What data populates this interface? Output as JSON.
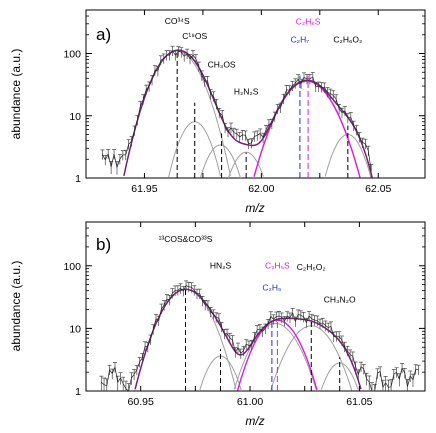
{
  "chart_data": [
    {
      "type": "line",
      "panel_label": "a)",
      "xlabel": "m/z",
      "ylabel": "abundance (a.u.)",
      "xlim": [
        61.925,
        62.07
      ],
      "ylim": [
        1,
        500
      ],
      "yscale": "log",
      "xticks": [
        {
          "value": 61.95,
          "label": "61.95"
        },
        {
          "value": 61.975,
          "label": ""
        },
        {
          "value": 62.0,
          "label": "62.00"
        },
        {
          "value": 62.025,
          "label": ""
        },
        {
          "value": 62.05,
          "label": "62.05"
        }
      ],
      "yticks": [
        {
          "value": 1,
          "label": "1"
        },
        {
          "value": 10,
          "label": "10"
        },
        {
          "value": 100,
          "label": "100"
        }
      ],
      "annotations": [
        {
          "x": 61.964,
          "text": "CO³⁴S",
          "color": "#000000",
          "line_top": 90,
          "text_y": 300
        },
        {
          "x": 61.9715,
          "text": "C¹⁸OS",
          "color": "#000000",
          "line_top": 14,
          "text_y": 170
        },
        {
          "x": 61.983,
          "text": "CH₃OS",
          "color": "#000000",
          "line_top": 4.5,
          "text_y": 60
        },
        {
          "x": 61.9935,
          "text": "H₂N₂S",
          "color": "#000000",
          "line_top": 2.2,
          "text_y": 22
        },
        {
          "x": 62.0165,
          "text": "C₂H₇",
          "color": "#1f2fd0",
          "line_top": 38,
          "text_y": 150,
          "dash": "6,3"
        },
        {
          "x": 62.02,
          "text": "C₂H₆S",
          "color": "#e01be0",
          "line_top": 38,
          "text_y": 290,
          "dash": "6,3"
        },
        {
          "x": 62.037,
          "text": "C₂H₆O₂",
          "color": "#000000",
          "line_top": 6,
          "text_y": 150
        }
      ],
      "components": [
        {
          "center": 61.964,
          "height": 110,
          "sigma": 0.0075
        },
        {
          "center": 61.9715,
          "height": 8,
          "sigma": 0.0055
        },
        {
          "center": 61.9825,
          "height": 3.4,
          "sigma": 0.0055
        },
        {
          "center": 61.9935,
          "height": 2.6,
          "sigma": 0.0055
        },
        {
          "center": 62.0195,
          "height": 37,
          "sigma": 0.0085
        },
        {
          "center": 62.037,
          "height": 5,
          "sigma": 0.0055
        }
      ],
      "magenta_peak": {
        "center": 62.0195,
        "height": 36,
        "sigma": 0.0085
      },
      "data_range": [
        61.932,
        62.047
      ],
      "noise_seed": 3,
      "color_component": "#a0a0a0",
      "color_total": "#7a1c7a",
      "color_magenta": "#e01be0",
      "color_data": "#444444"
    },
    {
      "type": "line",
      "panel_label": "b)",
      "xlabel": "m/z",
      "ylabel": "abundance (a.u.)",
      "xlim": [
        60.925,
        61.08
      ],
      "ylim": [
        1,
        500
      ],
      "yscale": "log",
      "xticks": [
        {
          "value": 60.95,
          "label": "60.95"
        },
        {
          "value": 60.975,
          "label": ""
        },
        {
          "value": 61.0,
          "label": "61.00"
        },
        {
          "value": 61.025,
          "label": ""
        },
        {
          "value": 61.05,
          "label": "61.05"
        }
      ],
      "yticks": [
        {
          "value": 1,
          "label": "1"
        },
        {
          "value": 10,
          "label": "10"
        },
        {
          "value": 100,
          "label": "100"
        }
      ],
      "annotations": [
        {
          "x": 60.9705,
          "text": "¹³COS&CO³³S",
          "color": "#000000",
          "line_top": 40,
          "text_y": 240
        },
        {
          "x": 60.9865,
          "text": "HN₂S",
          "color": "#000000",
          "line_top": 4,
          "text_y": 90
        },
        {
          "x": 61.01,
          "text": "C₂H₅",
          "color": "#1f2fd0",
          "line_top": 12,
          "text_y": 40,
          "dash": "6,3"
        },
        {
          "x": 61.0125,
          "text": "C₂H₅S",
          "color": "#e01be0",
          "line_top": 12,
          "text_y": 90,
          "dash": "6,3"
        },
        {
          "x": 61.028,
          "text": "C₂H₅O₂",
          "color": "#000000",
          "line_top": 12,
          "text_y": 85
        },
        {
          "x": 61.041,
          "text": "CH₃N₂O",
          "color": "#000000",
          "line_top": 3,
          "text_y": 26
        }
      ],
      "components": [
        {
          "center": 60.9705,
          "height": 42,
          "sigma": 0.0085
        },
        {
          "center": 60.9865,
          "height": 3.6,
          "sigma": 0.006
        },
        {
          "center": 61.0115,
          "height": 12,
          "sigma": 0.0085
        },
        {
          "center": 61.028,
          "height": 11,
          "sigma": 0.0085
        },
        {
          "center": 61.041,
          "height": 2.8,
          "sigma": 0.006
        }
      ],
      "magenta_peak": {
        "center": 61.0125,
        "height": 13.5,
        "sigma": 0.008
      },
      "data_range": [
        60.932,
        61.078
      ],
      "noise_seed": 11,
      "color_component": "#a0a0a0",
      "color_total": "#7a1c7a",
      "color_magenta": "#e01be0",
      "color_data": "#444444"
    }
  ]
}
